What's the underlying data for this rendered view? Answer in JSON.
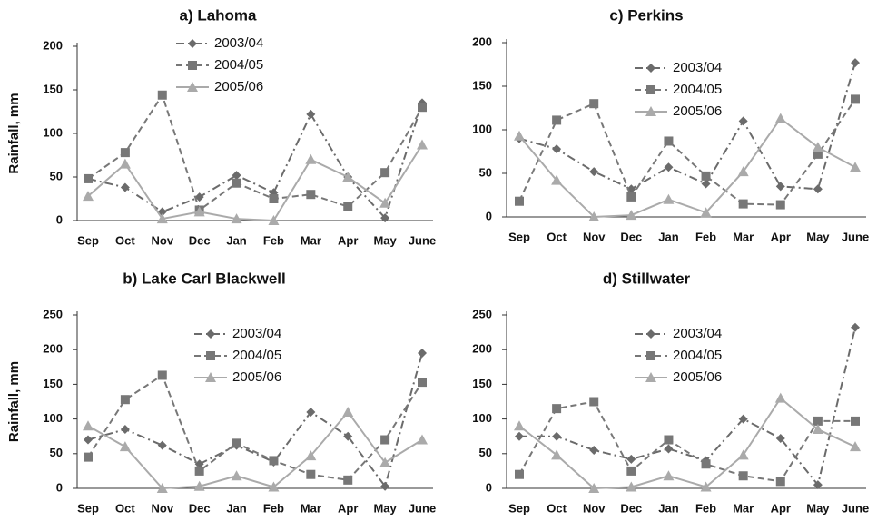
{
  "chart_data": [
    {
      "type": "line",
      "title": "a) Lahoma",
      "y_label": "Rainfall, mm",
      "categories": [
        "Sep",
        "Oct",
        "Nov",
        "Dec",
        "Jan",
        "Feb",
        "Mar",
        "Apr",
        "May",
        "June"
      ],
      "ylim": [
        0,
        200
      ],
      "yticks": [
        0,
        50,
        100,
        150,
        200
      ],
      "series": [
        {
          "name": "2003/04",
          "color": "#6b6b6b",
          "marker": "diamond",
          "dash": "dash-dot",
          "values": [
            48,
            38,
            10,
            27,
            52,
            32,
            122,
            50,
            3,
            135
          ]
        },
        {
          "name": "2004/05",
          "color": "#777777",
          "marker": "square",
          "dash": "dashed",
          "values": [
            48,
            78,
            144,
            12,
            43,
            25,
            30,
            16,
            55,
            130
          ]
        },
        {
          "name": "2005/06",
          "color": "#aaaaaa",
          "marker": "triangle",
          "dash": "solid",
          "values": [
            28,
            65,
            2,
            10,
            2,
            0,
            70,
            50,
            20,
            87
          ]
        }
      ]
    },
    {
      "type": "line",
      "title": "c) Perkins",
      "categories": [
        "Sep",
        "Oct",
        "Nov",
        "Dec",
        "Jan",
        "Feb",
        "Mar",
        "Apr",
        "May",
        "June"
      ],
      "ylim": [
        0,
        200
      ],
      "yticks": [
        0,
        50,
        100,
        150,
        200
      ],
      "series": [
        {
          "name": "2003/04",
          "color": "#6b6b6b",
          "marker": "diamond",
          "dash": "dash-dot",
          "values": [
            90,
            78,
            52,
            32,
            57,
            38,
            110,
            35,
            32,
            177
          ]
        },
        {
          "name": "2004/05",
          "color": "#777777",
          "marker": "square",
          "dash": "dashed",
          "values": [
            18,
            111,
            130,
            23,
            87,
            47,
            15,
            14,
            72,
            135
          ]
        },
        {
          "name": "2005/06",
          "color": "#aaaaaa",
          "marker": "triangle",
          "dash": "solid",
          "values": [
            93,
            42,
            0,
            2,
            20,
            5,
            52,
            113,
            80,
            57
          ]
        }
      ]
    },
    {
      "type": "line",
      "title": "b) Lake Carl Blackwell",
      "y_label": "Rainfall, mm",
      "categories": [
        "Sep",
        "Oct",
        "Nov",
        "Dec",
        "Jan",
        "Feb",
        "Mar",
        "Apr",
        "May",
        "June"
      ],
      "ylim": [
        0,
        250
      ],
      "yticks": [
        0,
        50,
        100,
        150,
        200,
        250
      ],
      "series": [
        {
          "name": "2003/04",
          "color": "#6b6b6b",
          "marker": "diamond",
          "dash": "dash-dot",
          "values": [
            70,
            85,
            62,
            35,
            62,
            38,
            110,
            75,
            3,
            195
          ]
        },
        {
          "name": "2004/05",
          "color": "#777777",
          "marker": "square",
          "dash": "dashed",
          "values": [
            45,
            128,
            163,
            25,
            65,
            40,
            20,
            12,
            70,
            153
          ]
        },
        {
          "name": "2005/06",
          "color": "#aaaaaa",
          "marker": "triangle",
          "dash": "solid",
          "values": [
            90,
            60,
            0,
            3,
            18,
            2,
            47,
            110,
            37,
            70
          ]
        }
      ]
    },
    {
      "type": "line",
      "title": "d) Stillwater",
      "categories": [
        "Sep",
        "Oct",
        "Nov",
        "Dec",
        "Jan",
        "Feb",
        "Mar",
        "Apr",
        "May",
        "June"
      ],
      "ylim": [
        0,
        250
      ],
      "yticks": [
        0,
        50,
        100,
        150,
        200,
        250
      ],
      "series": [
        {
          "name": "2003/04",
          "color": "#6b6b6b",
          "marker": "diamond",
          "dash": "dash-dot",
          "values": [
            75,
            75,
            55,
            42,
            57,
            40,
            100,
            72,
            5,
            232
          ]
        },
        {
          "name": "2004/05",
          "color": "#777777",
          "marker": "square",
          "dash": "dashed",
          "values": [
            20,
            115,
            125,
            25,
            70,
            35,
            18,
            10,
            97,
            97
          ]
        },
        {
          "name": "2005/06",
          "color": "#aaaaaa",
          "marker": "triangle",
          "dash": "solid",
          "values": [
            90,
            48,
            0,
            2,
            18,
            2,
            48,
            130,
            85,
            60
          ]
        }
      ]
    }
  ]
}
